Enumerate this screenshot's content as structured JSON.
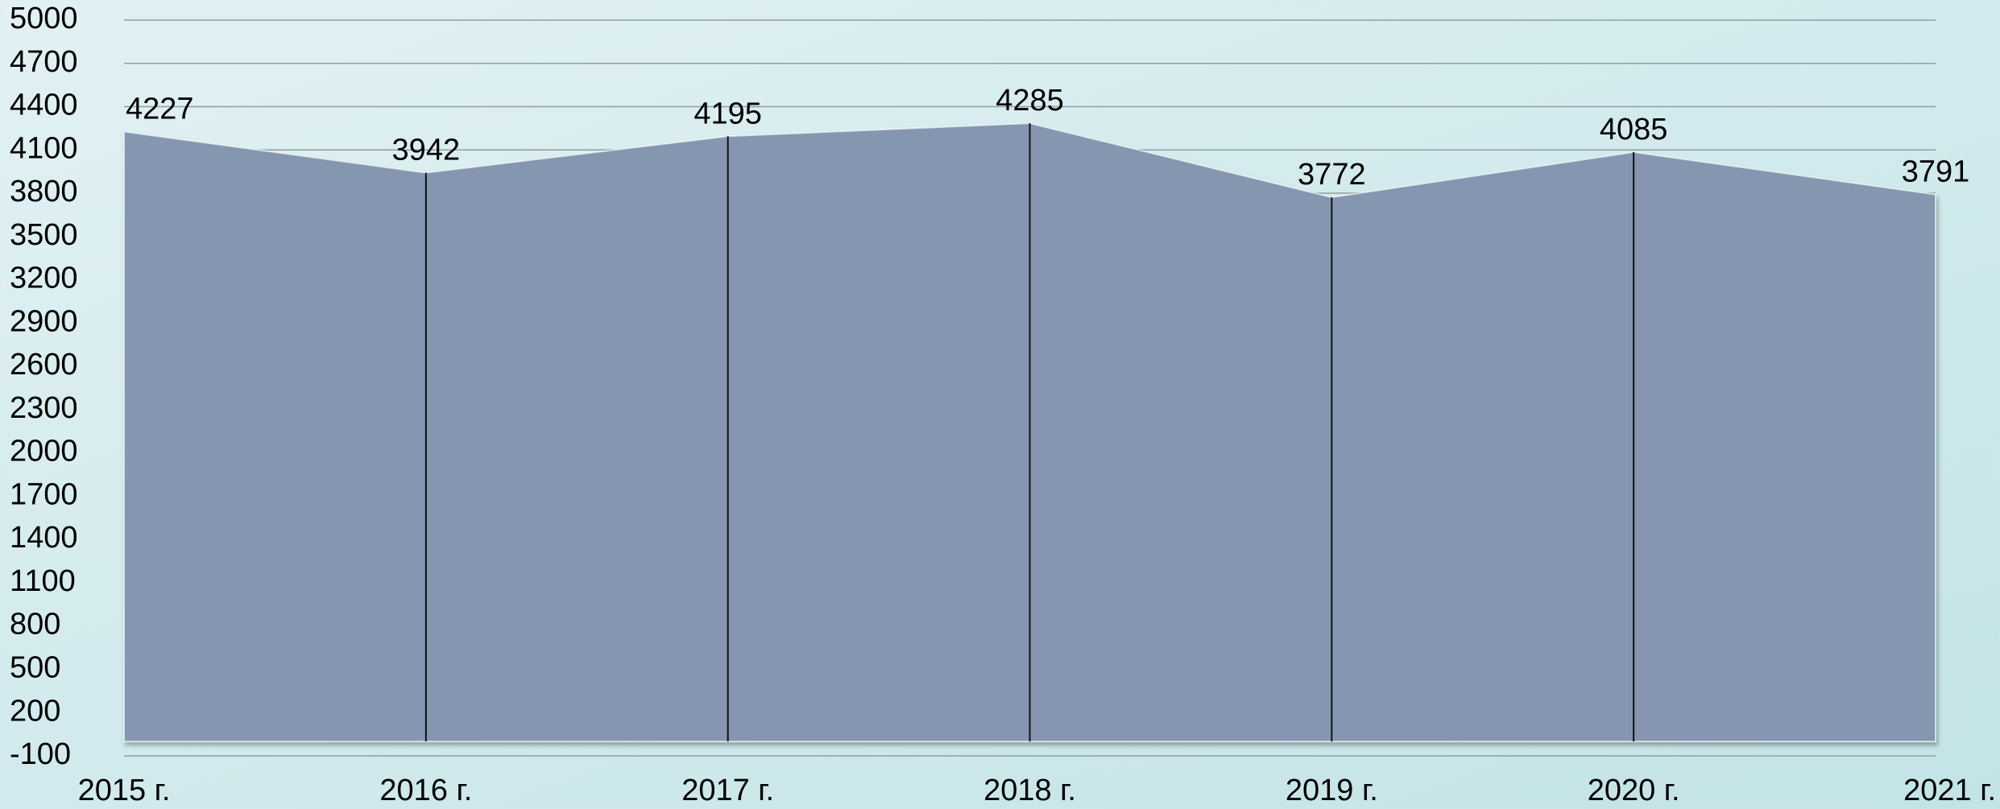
{
  "chart_data": {
    "type": "area",
    "categories": [
      "2015 г.",
      "2016 г.",
      "2017 г.",
      "2018 г.",
      "2019 г.",
      "2020 г.",
      "2021 г."
    ],
    "values": [
      4227,
      3942,
      4195,
      4285,
      3772,
      4085,
      3791
    ],
    "color": "#8496b0",
    "ylim": [
      -100,
      5000
    ],
    "yticks": [
      -100,
      200,
      500,
      800,
      1100,
      1400,
      1700,
      2000,
      2300,
      2600,
      2900,
      3200,
      3500,
      3800,
      4100,
      4400,
      4700,
      5000
    ],
    "grid": true,
    "drop_lines": true
  }
}
